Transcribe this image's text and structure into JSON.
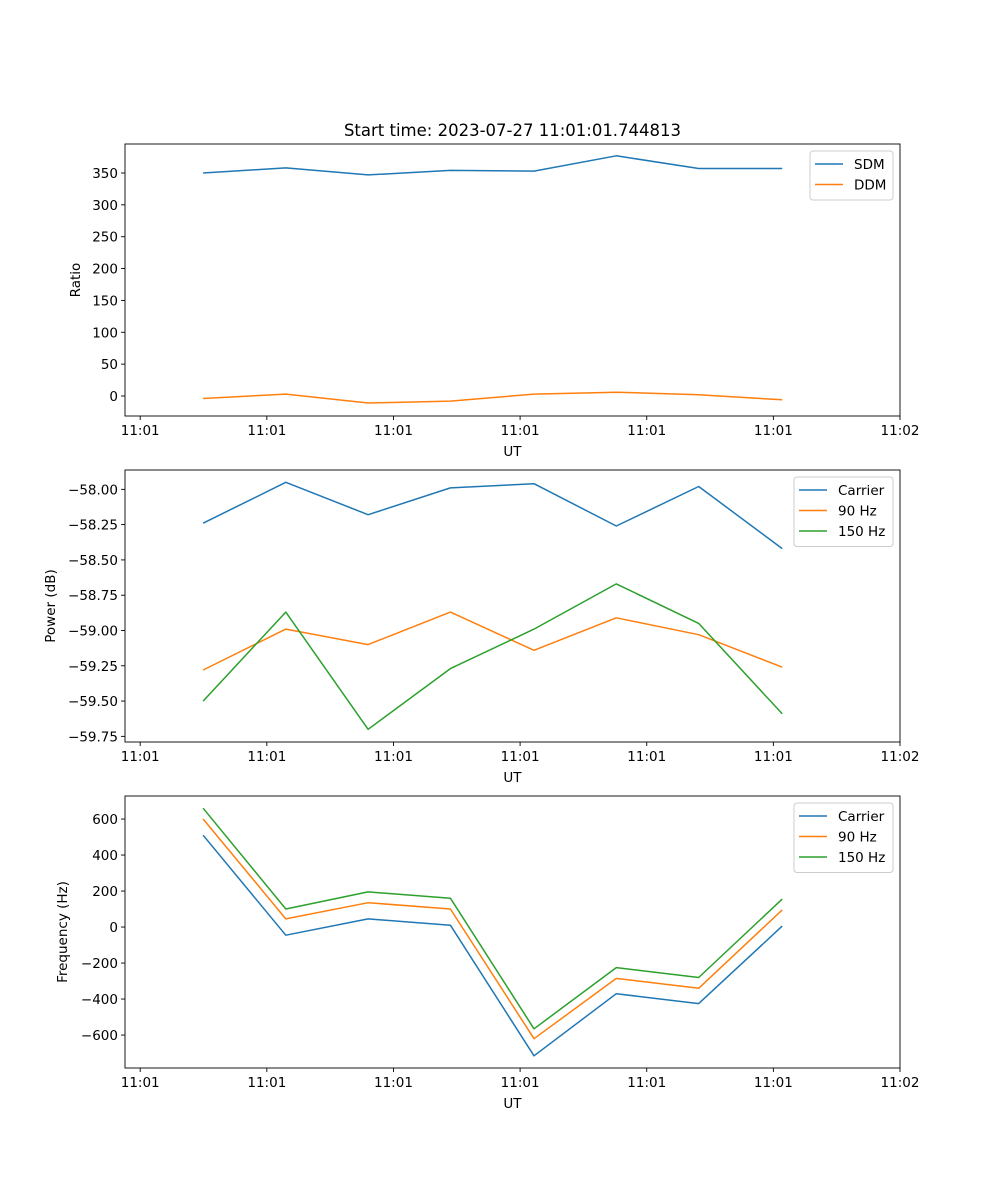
{
  "chart_data": [
    {
      "type": "line",
      "title": "Start time: 2023-07-27 11:01:01.744813",
      "xlabel": "UT",
      "ylabel": "Ratio",
      "x_seconds_after_11_01_00": [
        4.97,
        11.5,
        18.0,
        24.5,
        31.1,
        37.6,
        44.1,
        50.7
      ],
      "xlim": [
        -1.2,
        60
      ],
      "xticks": [
        0,
        10,
        20,
        30,
        40,
        50,
        60
      ],
      "xtick_labels": [
        "11:01",
        "11:01",
        "11:01",
        "11:01",
        "11:01",
        "11:01",
        "11:02"
      ],
      "ylim": [
        -31.4,
        395.5
      ],
      "yticks": [
        0,
        50,
        100,
        150,
        200,
        250,
        300,
        350
      ],
      "ytick_labels": [
        "0",
        "50",
        "100",
        "150",
        "200",
        "250",
        "300",
        "350"
      ],
      "legend": "top-right",
      "grid": false,
      "series": [
        {
          "name": "SDM",
          "color": "#1f77b4",
          "values": [
            350,
            358,
            347,
            354,
            353,
            377,
            357,
            357
          ]
        },
        {
          "name": "DDM",
          "color": "#ff7f0e",
          "values": [
            -4,
            3,
            -11,
            -8,
            3,
            6,
            2,
            -6
          ]
        }
      ]
    },
    {
      "type": "line",
      "title": "",
      "xlabel": "UT",
      "ylabel": "Power (dB)",
      "x_seconds_after_11_01_00": [
        4.97,
        11.5,
        18.0,
        24.5,
        31.1,
        37.6,
        44.1,
        50.7
      ],
      "xlim": [
        -1.2,
        60
      ],
      "xticks": [
        0,
        10,
        20,
        30,
        40,
        50,
        60
      ],
      "xtick_labels": [
        "11:01",
        "11:01",
        "11:01",
        "11:01",
        "11:01",
        "11:01",
        "11:02"
      ],
      "ylim": [
        -59.79,
        -57.863
      ],
      "yticks": [
        -58.0,
        -58.25,
        -58.5,
        -58.75,
        -59.0,
        -59.25,
        -59.5,
        -59.75
      ],
      "ytick_labels": [
        "−58.00",
        "−58.25",
        "−58.50",
        "−58.75",
        "−59.00",
        "−59.25",
        "−59.50",
        "−59.75"
      ],
      "legend": "top-right",
      "grid": false,
      "series": [
        {
          "name": "Carrier",
          "color": "#1f77b4",
          "values": [
            -58.24,
            -57.95,
            -58.18,
            -57.99,
            -57.96,
            -58.26,
            -57.98,
            -58.42
          ]
        },
        {
          "name": "90 Hz",
          "color": "#ff7f0e",
          "values": [
            -59.28,
            -58.99,
            -59.1,
            -58.87,
            -59.14,
            -58.91,
            -59.03,
            -59.26
          ]
        },
        {
          "name": "150 Hz",
          "color": "#2ca02c",
          "values": [
            -59.5,
            -58.87,
            -59.7,
            -59.27,
            -58.99,
            -58.67,
            -58.95,
            -59.59
          ]
        }
      ]
    },
    {
      "type": "line",
      "title": "",
      "xlabel": "UT",
      "ylabel": "Frequency (Hz)",
      "x_seconds_after_11_01_00": [
        4.97,
        11.5,
        18.0,
        24.5,
        31.1,
        37.6,
        44.1,
        50.7
      ],
      "xlim": [
        -1.2,
        60
      ],
      "xticks": [
        0,
        10,
        20,
        30,
        40,
        50,
        60
      ],
      "xtick_labels": [
        "11:01",
        "11:01",
        "11:01",
        "11:01",
        "11:01",
        "11:01",
        "11:02"
      ],
      "ylim": [
        -783,
        728
      ],
      "yticks": [
        -600,
        -400,
        -200,
        0,
        200,
        400,
        600
      ],
      "ytick_labels": [
        "−600",
        "−400",
        "−200",
        "0",
        "200",
        "400",
        "600"
      ],
      "legend": "top-right",
      "grid": false,
      "series": [
        {
          "name": "Carrier",
          "color": "#1f77b4",
          "values": [
            510,
            -45,
            45,
            10,
            -715,
            -370,
            -425,
            5
          ]
        },
        {
          "name": "90 Hz",
          "color": "#ff7f0e",
          "values": [
            600,
            45,
            135,
            100,
            -620,
            -285,
            -340,
            95
          ]
        },
        {
          "name": "150 Hz",
          "color": "#2ca02c",
          "values": [
            660,
            100,
            195,
            160,
            -565,
            -225,
            -280,
            155
          ]
        }
      ]
    }
  ]
}
